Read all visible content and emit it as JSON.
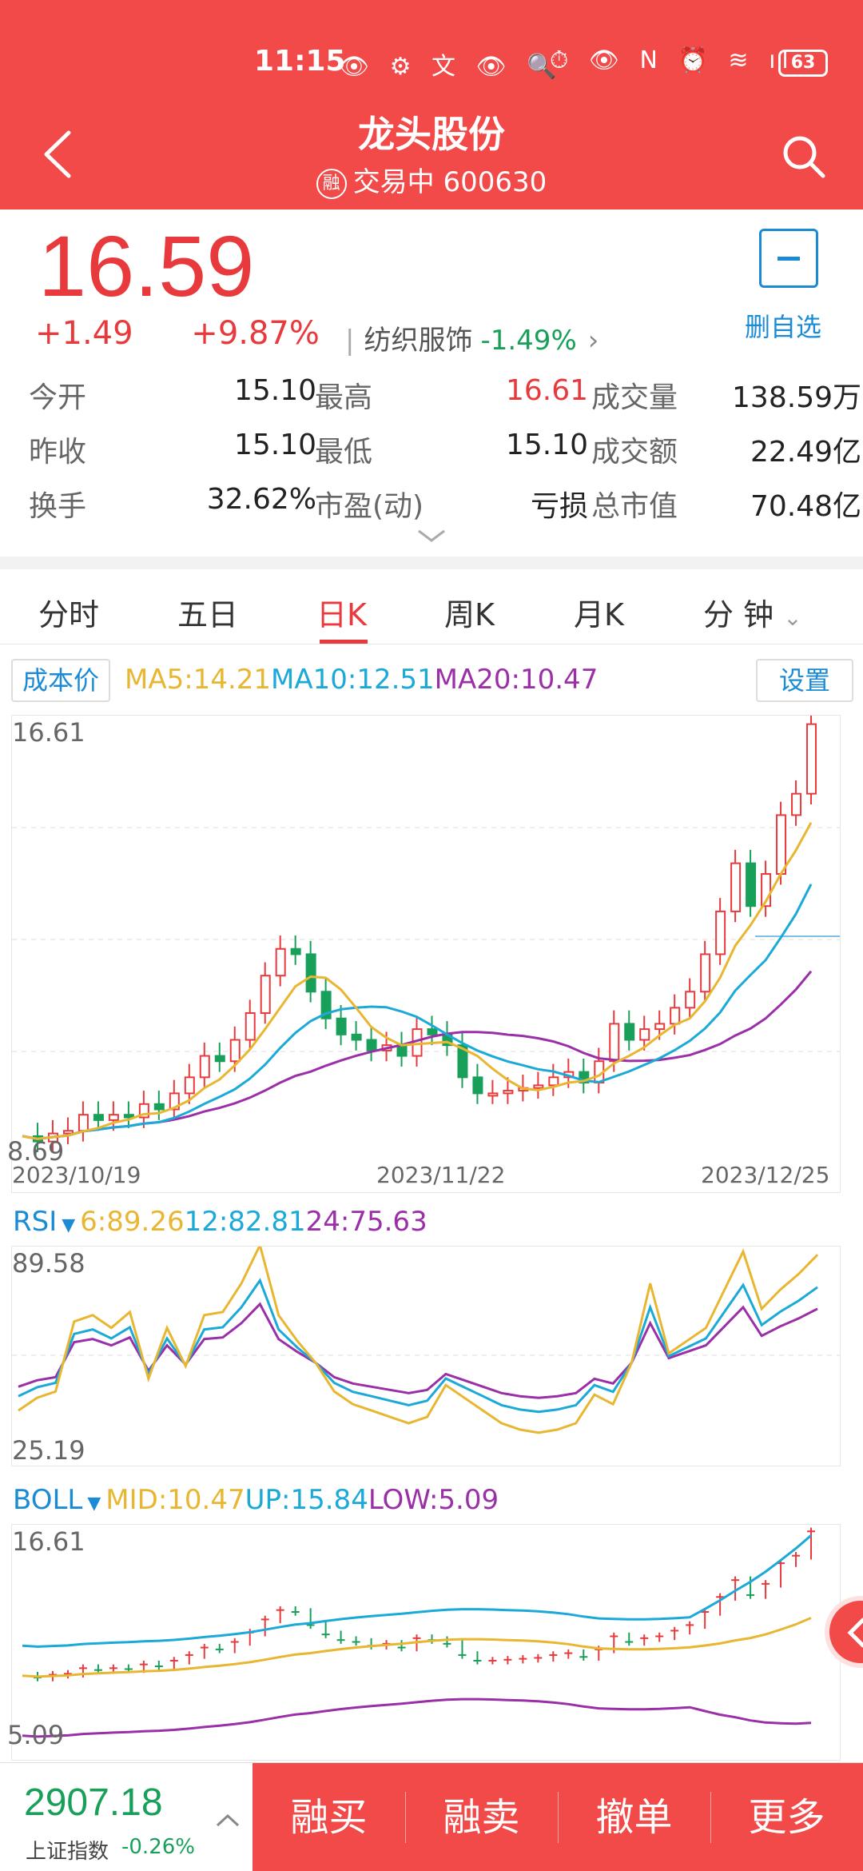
{
  "status_bar": {
    "time": "11:15",
    "left_icons": "👁 ⚙ 文 👁 🔍",
    "right_icons": "⏱ 👁 N ⏰ ≋ ıl",
    "battery": "63"
  },
  "header": {
    "title": "龙头股份",
    "rong_badge": "融",
    "status": "交易中",
    "code": "600630"
  },
  "quote": {
    "price": "16.59",
    "change": "+1.49",
    "change_pct": "+9.87%",
    "sector_name": "纺织服饰",
    "sector_pct": "-1.49%",
    "watchlist_label": "删自选",
    "rows": [
      [
        {
          "label": "今开",
          "value": "15.10"
        },
        {
          "label": "最高",
          "value": "16.61"
        },
        {
          "label": "成交量",
          "value": "138.59万"
        }
      ],
      [
        {
          "label": "昨收",
          "value": "15.10"
        },
        {
          "label": "最低",
          "value": "15.10"
        },
        {
          "label": "成交额",
          "value": "22.49亿"
        }
      ],
      [
        {
          "label": "换手",
          "value": "32.62%"
        },
        {
          "label": "市盈(动)",
          "value": "亏损"
        },
        {
          "label": "总市值",
          "value": "70.48亿"
        }
      ]
    ]
  },
  "tabs": [
    "分时",
    "五日",
    "日K",
    "周K",
    "月K",
    "分 钟"
  ],
  "tabs_active": "日K",
  "main_chart": {
    "cost_btn": "成本价",
    "settings_btn": "设置",
    "ma5": "MA5:14.21",
    "ma10": "MA10:12.51",
    "ma20": "MA20:10.47",
    "y_max": "16.61",
    "y_min": "8.69",
    "x_start": "2023/10/19",
    "x_mid": "2023/11/22",
    "x_end": "2023/12/25"
  },
  "rsi": {
    "name": "RSI",
    "rsi6": "6:89.26",
    "rsi12": "12:82.81",
    "rsi24": "24:75.63",
    "y_max": "89.58",
    "y_min": "25.19"
  },
  "boll": {
    "name": "BOLL",
    "mid": "MID:10.47",
    "up": "UP:15.84",
    "low": "LOW:5.09",
    "y_max": "16.61",
    "y_min": "5.09"
  },
  "colors": {
    "red": "#e8393c",
    "green": "#18a05a",
    "ma5": "#e8b630",
    "ma10": "#1ba9d8",
    "ma20": "#9b2fa8"
  },
  "bottom": {
    "index_value": "2907.18",
    "index_name": "上证指数",
    "index_change": "-0.26%",
    "actions": [
      "融买",
      "融卖",
      "撤单",
      "更多"
    ]
  }
}
